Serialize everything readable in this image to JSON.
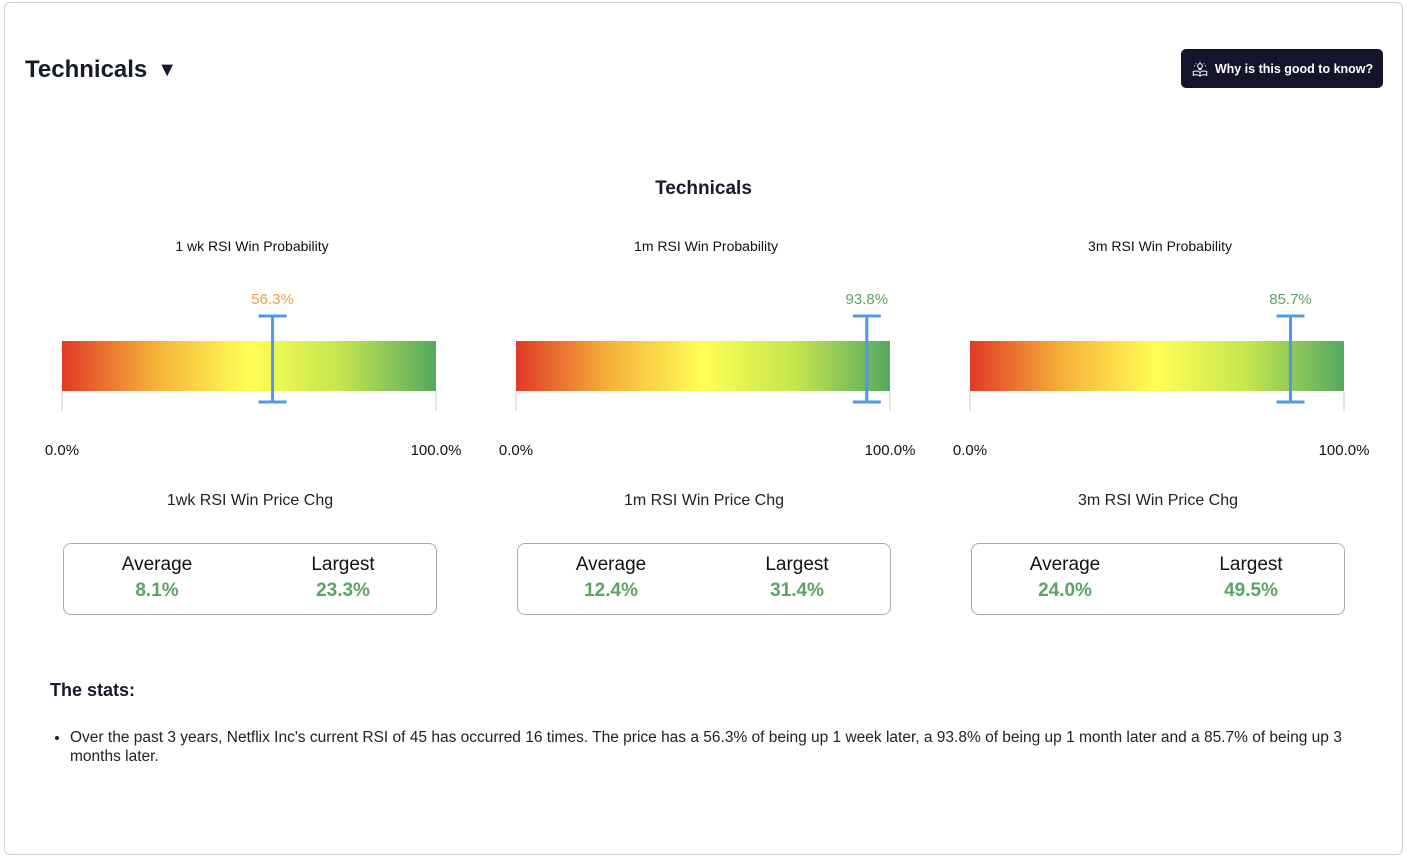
{
  "header": {
    "title": "Technicals",
    "caret": "▼",
    "info_button_label": "Why is this good to know?",
    "info_icon": "lightbulb-reading-icon"
  },
  "panel_title": "Technicals",
  "colors": {
    "gradient": [
      "#e03a26",
      "#f5b23a",
      "#ffff55",
      "#c2e54e",
      "#55a862"
    ],
    "marker": "#4e9ae8",
    "value_green": "#5aa563",
    "value_orange": "#f0a040",
    "button_bg": "#14142b"
  },
  "gauges": [
    {
      "title": "1 wk RSI Win Probability",
      "value": 56.3,
      "value_label": "56.3%",
      "value_color": "#f0a040",
      "min_label": "0.0%",
      "max_label": "100.0%"
    },
    {
      "title": "1m RSI Win Probability",
      "value": 93.8,
      "value_label": "93.8%",
      "value_color": "#5aa563",
      "min_label": "0.0%",
      "max_label": "100.0%"
    },
    {
      "title": "3m RSI Win Probability",
      "value": 85.7,
      "value_label": "85.7%",
      "value_color": "#5aa563",
      "min_label": "0.0%",
      "max_label": "100.0%"
    }
  ],
  "price_changes": [
    {
      "title": "1wk RSI Win Price Chg",
      "average_label": "Average",
      "average": "8.1%",
      "largest_label": "Largest",
      "largest": "23.3%"
    },
    {
      "title": "1m RSI Win Price Chg",
      "average_label": "Average",
      "average": "12.4%",
      "largest_label": "Largest",
      "largest": "31.4%"
    },
    {
      "title": "3m RSI Win Price Chg",
      "average_label": "Average",
      "average": "24.0%",
      "largest_label": "Largest",
      "largest": "49.5%"
    }
  ],
  "stats": {
    "title": "The stats:",
    "items": [
      "Over the past 3 years, Netflix Inc's current RSI of 45 has occurred 16 times. The price has a 56.3% of being up 1 week later, a 93.8% of being up 1 month later and a 85.7% of being up 3 months later."
    ]
  }
}
